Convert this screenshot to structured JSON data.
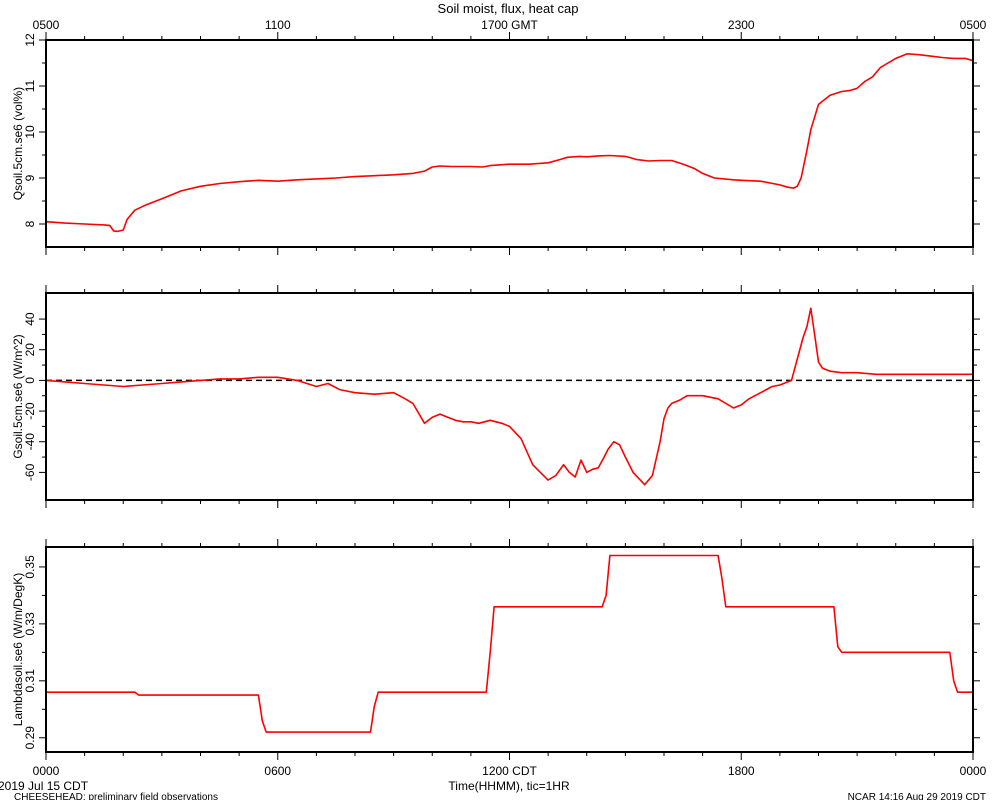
{
  "title": "Soil moist, flux, heat cap",
  "footer": {
    "date": "2019 Jul 15 CDT",
    "project": "CHEESEHEAD: preliminary field observations",
    "credit": "NCAR 14:16 Aug 29 2019 CDT"
  },
  "colors": {
    "series": "#ff0000",
    "axes": "#000000",
    "background": "#ffffff"
  },
  "chart_data": [
    {
      "type": "line",
      "ylabel": "Qsoil.5cm.se6 (vol%)",
      "x_unit": "hours since 0000 CDT",
      "xlim": [
        0,
        24
      ],
      "ylim": [
        7.5,
        12
      ],
      "yticks": [
        8,
        9,
        10,
        11,
        12
      ],
      "ytick_labels": [
        "8",
        "9",
        "10",
        "11",
        "12"
      ],
      "top_axis": {
        "ticks": [
          0,
          6,
          12,
          18,
          24
        ],
        "labels": [
          "0500",
          "1100",
          "1700 GMT",
          "2300",
          "0500"
        ]
      },
      "series": [
        {
          "x": [
            0,
            0.5,
            1.0,
            1.5,
            1.65,
            1.75,
            1.85,
            2.0,
            2.1,
            2.3,
            2.6,
            3.0,
            3.5,
            4.0,
            4.5,
            5.0,
            5.5,
            6.0,
            6.5,
            7.0,
            7.5,
            8.0,
            8.5,
            9.0,
            9.5,
            9.8,
            10.0,
            10.2,
            10.5,
            11.0,
            11.3,
            11.5,
            12.0,
            12.5,
            13.0,
            13.3,
            13.5,
            13.8,
            14.0,
            14.3,
            14.6,
            15.0,
            15.3,
            15.6,
            15.9,
            16.2,
            16.5,
            16.8,
            17.0,
            17.3,
            17.8,
            18.0,
            18.5,
            19.0,
            19.2,
            19.35,
            19.45,
            19.55,
            19.7,
            19.8,
            20.0,
            20.3,
            20.6,
            20.8,
            21.0,
            21.2,
            21.4,
            21.6,
            21.8,
            22.0,
            22.3,
            22.6,
            22.9,
            23.2,
            23.5,
            23.8,
            24.0
          ],
          "y": [
            8.05,
            8.02,
            8.0,
            7.98,
            7.97,
            7.85,
            7.84,
            7.87,
            8.1,
            8.3,
            8.42,
            8.55,
            8.72,
            8.82,
            8.88,
            8.92,
            8.95,
            8.93,
            8.96,
            8.98,
            9.0,
            9.03,
            9.05,
            9.07,
            9.1,
            9.15,
            9.24,
            9.26,
            9.25,
            9.25,
            9.24,
            9.27,
            9.3,
            9.3,
            9.33,
            9.4,
            9.45,
            9.47,
            9.46,
            9.48,
            9.49,
            9.47,
            9.4,
            9.37,
            9.38,
            9.38,
            9.3,
            9.2,
            9.1,
            9.0,
            8.96,
            8.95,
            8.93,
            8.85,
            8.8,
            8.78,
            8.82,
            9.0,
            9.6,
            10.05,
            10.6,
            10.8,
            10.88,
            10.9,
            10.95,
            11.1,
            11.2,
            11.4,
            11.5,
            11.6,
            11.7,
            11.68,
            11.65,
            11.62,
            11.6,
            11.6,
            11.55
          ]
        }
      ]
    },
    {
      "type": "line",
      "ylabel": "Gsoil.5cm.se6 (W/m^2)",
      "x_unit": "hours since 0000 CDT",
      "xlim": [
        0,
        24
      ],
      "ylim": [
        -78,
        57
      ],
      "yticks": [
        -60,
        -40,
        -20,
        0,
        20,
        40
      ],
      "ytick_labels": [
        "-60",
        "-40",
        "-20",
        "0",
        "20",
        "40"
      ],
      "reference_line": 0,
      "series": [
        {
          "x": [
            0,
            0.5,
            1.0,
            1.5,
            2.0,
            2.5,
            3.0,
            3.5,
            4.0,
            4.5,
            5.0,
            5.5,
            6.0,
            6.5,
            7.0,
            7.3,
            7.6,
            8.0,
            8.5,
            9.0,
            9.3,
            9.5,
            9.8,
            10.0,
            10.2,
            10.4,
            10.6,
            10.8,
            11.0,
            11.2,
            11.5,
            11.8,
            12.0,
            12.3,
            12.6,
            12.8,
            13.0,
            13.2,
            13.4,
            13.55,
            13.7,
            13.85,
            14.0,
            14.15,
            14.3,
            14.45,
            14.55,
            14.7,
            14.85,
            15.0,
            15.2,
            15.5,
            15.7,
            15.9,
            16.0,
            16.1,
            16.2,
            16.4,
            16.6,
            17.0,
            17.4,
            17.8,
            18.0,
            18.2,
            18.5,
            18.8,
            19.0,
            19.3,
            19.6,
            19.7,
            19.8,
            19.9,
            20.0,
            20.1,
            20.3,
            20.6,
            21.0,
            21.5,
            22.0,
            22.5,
            23.0,
            23.5,
            24.0
          ],
          "y": [
            0,
            -1,
            -2,
            -3,
            -4,
            -3,
            -2,
            -1,
            0,
            1,
            1,
            2,
            2,
            0,
            -4,
            -2,
            -6,
            -8,
            -9,
            -8,
            -12,
            -15,
            -28,
            -24,
            -22,
            -24,
            -26,
            -27,
            -27,
            -28,
            -26,
            -28,
            -30,
            -38,
            -55,
            -60,
            -65,
            -62,
            -55,
            -60,
            -63,
            -52,
            -60,
            -58,
            -57,
            -50,
            -45,
            -40,
            -42,
            -50,
            -60,
            -68,
            -62,
            -40,
            -25,
            -18,
            -15,
            -13,
            -10,
            -10,
            -12,
            -18,
            -16,
            -12,
            -8,
            -4,
            -3,
            0,
            28,
            35,
            47,
            30,
            12,
            8,
            6,
            5,
            5,
            4,
            4,
            4,
            4,
            4,
            4
          ]
        }
      ]
    },
    {
      "type": "line",
      "ylabel": "Lambdasoil.se6 (W/m/DegK)",
      "xlabel": "Time(HHMM), tic=1HR",
      "x_unit": "hours since 0000 CDT",
      "xlim": [
        0,
        24
      ],
      "ylim": [
        0.285,
        0.357
      ],
      "yticks": [
        0.29,
        0.31,
        0.33,
        0.35
      ],
      "ytick_labels": [
        "0.29",
        "0.31",
        "0.33",
        "0.35"
      ],
      "bottom_axis": {
        "ticks": [
          0,
          6,
          12,
          18,
          24
        ],
        "labels": [
          "0000",
          "0600",
          "1200 CDT",
          "1800",
          "0000"
        ]
      },
      "series": [
        {
          "x": [
            0,
            2.3,
            2.4,
            5.5,
            5.6,
            5.7,
            8.4,
            8.5,
            8.6,
            11.4,
            11.5,
            11.6,
            14.4,
            14.5,
            14.6,
            17.4,
            17.5,
            17.6,
            20.4,
            20.5,
            20.6,
            23.4,
            23.5,
            23.6,
            24.0
          ],
          "y": [
            0.306,
            0.306,
            0.305,
            0.305,
            0.296,
            0.292,
            0.292,
            0.301,
            0.306,
            0.306,
            0.32,
            0.336,
            0.336,
            0.34,
            0.354,
            0.354,
            0.346,
            0.336,
            0.336,
            0.322,
            0.32,
            0.32,
            0.31,
            0.306,
            0.306
          ]
        }
      ]
    }
  ]
}
